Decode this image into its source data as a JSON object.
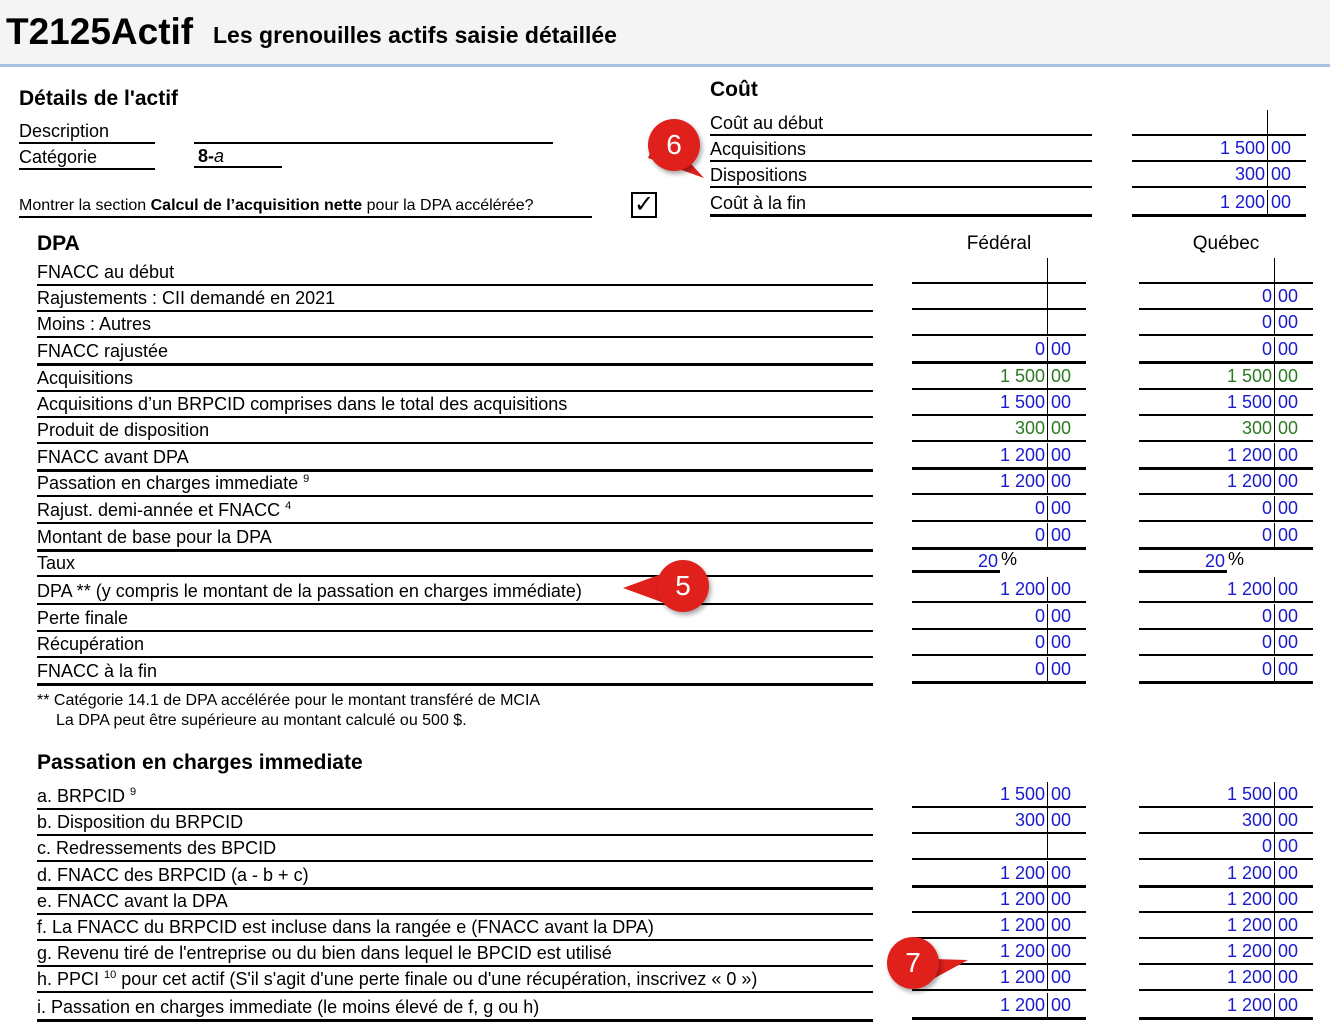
{
  "header": {
    "form_id": "T2125Actif",
    "subtitle": "Les grenouilles actifs saisie détaillée"
  },
  "details": {
    "title": "Détails de l'actif",
    "description_label": "Description",
    "description_value": "",
    "category_label": "Catégorie",
    "category_value_bold": "8-",
    "category_value_italic": "a",
    "show_section_pre": "Montrer la section ",
    "show_section_bold": "Calcul de l’acquisition nette",
    "show_section_post": " pour la DPA accélérée?",
    "checkbox_checked": true,
    "check_glyph": "✓"
  },
  "cost": {
    "title": "Coût",
    "rows": [
      {
        "label": "Coût au début",
        "int": "",
        "dec": ""
      },
      {
        "label": "Acquisitions",
        "int": "1 500",
        "dec": "00"
      },
      {
        "label": "Dispositions",
        "int": "300",
        "dec": "00"
      },
      {
        "label": "Coût à la fin",
        "int": "1 200",
        "dec": "00"
      }
    ]
  },
  "dpa": {
    "title": "DPA",
    "col_federal": "Fédéral",
    "col_quebec": "Québec",
    "rows": [
      {
        "label": "FNACC au début",
        "sup": "",
        "f_int": "",
        "f_dec": "",
        "q_int": "",
        "q_dec": ""
      },
      {
        "label": "Rajustements : CII demandé en 2021",
        "sup": "",
        "f_int": "",
        "f_dec": "",
        "q_int": "0",
        "q_dec": "00"
      },
      {
        "label": "Moins : Autres",
        "sup": "",
        "f_int": "",
        "f_dec": "",
        "q_int": "0",
        "q_dec": "00"
      },
      {
        "label": "FNACC rajustée",
        "sup": "",
        "f_int": "0",
        "f_dec": "00",
        "q_int": "0",
        "q_dec": "00"
      },
      {
        "label": "Acquisitions",
        "sup": "",
        "f_int": "1 500",
        "f_dec": "00",
        "q_int": "1 500",
        "q_dec": "00"
      },
      {
        "label": "Acquisitions d’un BRPCID comprises dans le total des acquisitions",
        "sup": "",
        "f_int": "1 500",
        "f_dec": "00",
        "q_int": "1 500",
        "q_dec": "00"
      },
      {
        "label": "Produit de disposition",
        "sup": "",
        "f_int": "300",
        "f_dec": "00",
        "q_int": "300",
        "q_dec": "00"
      },
      {
        "label": "FNACC avant DPA",
        "sup": "",
        "f_int": "1 200",
        "f_dec": "00",
        "q_int": "1 200",
        "q_dec": "00"
      },
      {
        "label": "Passation en charges immediate",
        "sup": "9",
        "f_int": "1 200",
        "f_dec": "00",
        "q_int": "1 200",
        "q_dec": "00"
      },
      {
        "label": "Rajust. demi-année et FNACC",
        "sup": "4",
        "f_int": "0",
        "f_dec": "00",
        "q_int": "0",
        "q_dec": "00"
      },
      {
        "label": "Montant de base pour la DPA",
        "sup": "",
        "f_int": "0",
        "f_dec": "00",
        "q_int": "0",
        "q_dec": "00"
      },
      {
        "label": "Taux",
        "sup": "",
        "f_rate": "20",
        "q_rate": "20",
        "pct": "%"
      },
      {
        "label": "DPA ** (y compris le montant de la passation en charges immédiate)",
        "sup": "",
        "f_int": "1 200",
        "f_dec": "00",
        "q_int": "1 200",
        "q_dec": "00"
      },
      {
        "label": "Perte finale",
        "sup": "",
        "f_int": "0",
        "f_dec": "00",
        "q_int": "0",
        "q_dec": "00"
      },
      {
        "label": "Récupération",
        "sup": "",
        "f_int": "0",
        "f_dec": "00",
        "q_int": "0",
        "q_dec": "00"
      },
      {
        "label": "FNACC à la fin",
        "sup": "",
        "f_int": "0",
        "f_dec": "00",
        "q_int": "0",
        "q_dec": "00"
      }
    ],
    "note_line1": "** Catégorie 14.1 de DPA accélérée pour le montant transféré de MCIA",
    "note_line2": "La DPA peut être supérieure au montant calculé ou 500 $."
  },
  "expensing": {
    "title": "Passation en charges immediate",
    "rows": [
      {
        "label": "a. BRPCID",
        "sup": "9",
        "post": "",
        "f_int": "1 500",
        "f_dec": "00",
        "q_int": "1 500",
        "q_dec": "00"
      },
      {
        "label": "b. Disposition du BRPCID",
        "sup": "",
        "post": "",
        "f_int": "300",
        "f_dec": "00",
        "q_int": "300",
        "q_dec": "00"
      },
      {
        "label": "c. Redressements des BPCID",
        "sup": "",
        "post": "",
        "f_int": "",
        "f_dec": "",
        "q_int": "0",
        "q_dec": "00"
      },
      {
        "label": "d. FNACC des BRPCID (a - b + c)",
        "sup": "",
        "post": "",
        "f_int": "1 200",
        "f_dec": "00",
        "q_int": "1 200",
        "q_dec": "00"
      },
      {
        "label": "e. FNACC avant la DPA",
        "sup": "",
        "post": "",
        "f_int": "1 200",
        "f_dec": "00",
        "q_int": "1 200",
        "q_dec": "00"
      },
      {
        "label": "f. La FNACC du BRPCID est incluse dans la rangée e (FNACC avant la DPA)",
        "sup": "",
        "post": "",
        "f_int": "1 200",
        "f_dec": "00",
        "q_int": "1 200",
        "q_dec": "00"
      },
      {
        "label": "g. Revenu tiré de l'entreprise ou du bien dans lequel le BPCID est utilisé",
        "sup": "",
        "post": "",
        "f_int": "1 200",
        "f_dec": "00",
        "q_int": "1 200",
        "q_dec": "00"
      },
      {
        "label": "h. PPCI",
        "sup": "10",
        "post": " pour cet actif (S'il s'agit d'une perte finale ou d'une récupération, inscrivez « 0 »)",
        "f_int": "1 200",
        "f_dec": "00",
        "q_int": "1 200",
        "q_dec": "00"
      },
      {
        "label": "i. Passation en charges immediate (le moins élevé de f, g ou h)",
        "sup": "",
        "post": "",
        "f_int": "1 200",
        "f_dec": "00",
        "q_int": "1 200",
        "q_dec": "00"
      }
    ]
  },
  "callouts": {
    "five": "5",
    "six": "6",
    "seven": "7"
  },
  "colors": {
    "value_blue": "#1a1acd",
    "value_green": "#2b7a22",
    "callout_red": "#e0201b",
    "header_rule": "#a9c1de"
  }
}
